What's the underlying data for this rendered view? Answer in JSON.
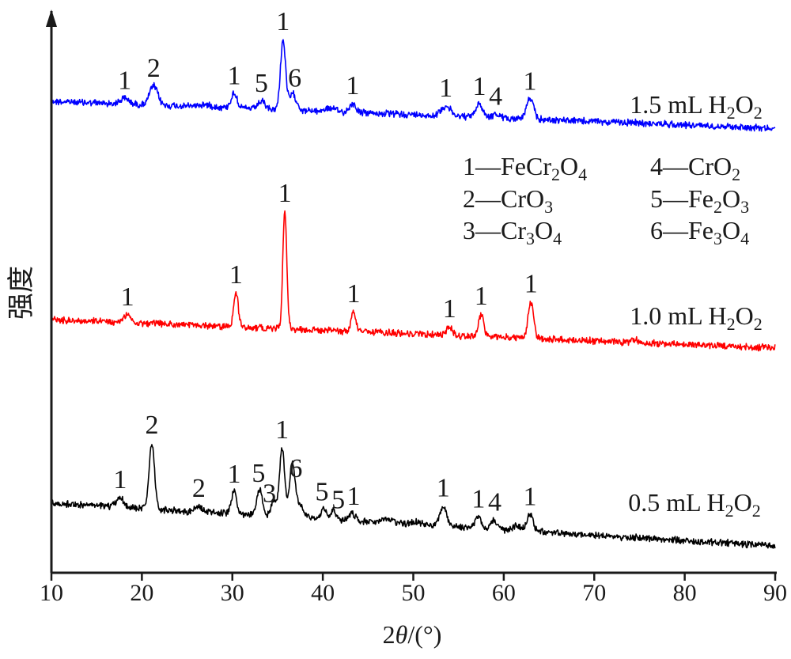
{
  "chart_data": {
    "type": "line",
    "xlabel": "2θ/(°)",
    "ylabel": "强度",
    "xlim": [
      10,
      90
    ],
    "xticks": [
      10,
      20,
      30,
      40,
      50,
      60,
      70,
      80,
      90
    ],
    "xtick_labels": [
      "10",
      "20",
      "30",
      "40",
      "50",
      "60",
      "70",
      "80",
      "90"
    ],
    "grid": false,
    "legend": {
      "placement": "right-middle",
      "entries": [
        {
          "id": "1",
          "text": "1—FeCr",
          "sub": [
            "2",
            "4"
          ],
          "parts": [
            "1—FeCr",
            "2",
            "O",
            "4"
          ]
        },
        {
          "id": "4",
          "parts": [
            "4—CrO",
            "2"
          ]
        },
        {
          "id": "2",
          "parts": [
            "2—CrO",
            "3"
          ]
        },
        {
          "id": "5",
          "parts": [
            "5—Fe",
            "2",
            "O",
            "3"
          ]
        },
        {
          "id": "3",
          "parts": [
            "3—Cr",
            "3",
            "O",
            "4"
          ]
        },
        {
          "id": "6",
          "parts": [
            "6—Fe",
            "3",
            "O",
            "4"
          ]
        }
      ]
    },
    "series": [
      {
        "name": "1.5 mL H2O2",
        "label_parts": [
          "1.5 mL H",
          "2",
          "O",
          "2"
        ],
        "color": "#0000ff",
        "peaks": [
          {
            "x": 18.1,
            "h": 0.25,
            "w": 0.5
          },
          {
            "x": 21.3,
            "h": 0.85,
            "w": 0.45
          },
          {
            "x": 26.9,
            "h": 0.1,
            "w": 0.9
          },
          {
            "x": 30.2,
            "h": 0.65,
            "w": 0.35
          },
          {
            "x": 33.2,
            "h": 0.35,
            "w": 0.35
          },
          {
            "x": 35.6,
            "h": 3.15,
            "w": 0.28
          },
          {
            "x": 36.7,
            "h": 0.72,
            "w": 0.4
          },
          {
            "x": 40.8,
            "h": 0.15,
            "w": 0.6
          },
          {
            "x": 43.3,
            "h": 0.4,
            "w": 0.35
          },
          {
            "x": 53.6,
            "h": 0.45,
            "w": 0.5
          },
          {
            "x": 57.3,
            "h": 0.58,
            "w": 0.4
          },
          {
            "x": 59.1,
            "h": 0.15,
            "w": 0.4
          },
          {
            "x": 62.9,
            "h": 0.9,
            "w": 0.4
          }
        ],
        "peak_labels": [
          {
            "text": "1",
            "x": 18.1
          },
          {
            "text": "2",
            "x": 21.3
          },
          {
            "text": "1",
            "x": 30.2
          },
          {
            "text": "5",
            "x": 33.2
          },
          {
            "text": "1",
            "x": 35.6
          },
          {
            "text": "6",
            "x": 36.9
          },
          {
            "text": "1",
            "x": 43.3
          },
          {
            "text": "1",
            "x": 53.6
          },
          {
            "text": "1",
            "x": 57.3
          },
          {
            "text": "4",
            "x": 59.1
          },
          {
            "text": "1",
            "x": 62.9
          }
        ]
      },
      {
        "name": "1.0 mL H2O2",
        "label_parts": [
          "1.0 mL H",
          "2",
          "O",
          "2"
        ],
        "color": "#ff0000",
        "peaks": [
          {
            "x": 18.4,
            "h": 0.35,
            "w": 0.4
          },
          {
            "x": 30.4,
            "h": 1.55,
            "w": 0.25
          },
          {
            "x": 35.8,
            "h": 5.3,
            "w": 0.22
          },
          {
            "x": 43.4,
            "h": 0.9,
            "w": 0.25
          },
          {
            "x": 54.0,
            "h": 0.38,
            "w": 0.3
          },
          {
            "x": 57.5,
            "h": 1.02,
            "w": 0.28
          },
          {
            "x": 63.0,
            "h": 1.65,
            "w": 0.3
          },
          {
            "x": 74.4,
            "h": 0.12,
            "w": 0.4
          }
        ],
        "peak_labels": [
          {
            "text": "1",
            "x": 18.4
          },
          {
            "text": "1",
            "x": 30.4
          },
          {
            "text": "1",
            "x": 35.8
          },
          {
            "text": "1",
            "x": 43.4
          },
          {
            "text": "1",
            "x": 54.0
          },
          {
            "text": "1",
            "x": 57.5
          },
          {
            "text": "1",
            "x": 63.0
          }
        ]
      },
      {
        "name": "0.5 mL H2O2",
        "label_parts": [
          "0.5 mL H",
          "2",
          "O",
          "2"
        ],
        "color": "#000000",
        "peaks": [
          {
            "x": 17.6,
            "h": 0.35,
            "w": 0.4
          },
          {
            "x": 21.1,
            "h": 2.45,
            "w": 0.3
          },
          {
            "x": 26.3,
            "h": 0.2,
            "w": 0.4
          },
          {
            "x": 30.2,
            "h": 0.82,
            "w": 0.3
          },
          {
            "x": 33.0,
            "h": 0.95,
            "w": 0.3
          },
          {
            "x": 34.6,
            "h": 0.65,
            "w": 0.3
          },
          {
            "x": 35.5,
            "h": 2.55,
            "w": 0.28
          },
          {
            "x": 36.6,
            "h": 1.8,
            "w": 0.3
          },
          {
            "x": 37.3,
            "h": 0.5,
            "w": 0.5
          },
          {
            "x": 40.1,
            "h": 0.42,
            "w": 0.3
          },
          {
            "x": 41.2,
            "h": 0.35,
            "w": 0.3
          },
          {
            "x": 43.2,
            "h": 0.3,
            "w": 0.35
          },
          {
            "x": 47.3,
            "h": 0.12,
            "w": 0.6
          },
          {
            "x": 50.5,
            "h": 0.1,
            "w": 0.6
          },
          {
            "x": 53.3,
            "h": 0.75,
            "w": 0.35
          },
          {
            "x": 57.2,
            "h": 0.42,
            "w": 0.35
          },
          {
            "x": 58.9,
            "h": 0.35,
            "w": 0.35
          },
          {
            "x": 61.5,
            "h": 0.18,
            "w": 0.5
          },
          {
            "x": 62.9,
            "h": 0.62,
            "w": 0.35
          }
        ],
        "peak_labels": [
          {
            "text": "1",
            "x": 17.6
          },
          {
            "text": "2",
            "x": 21.1
          },
          {
            "text": "2",
            "x": 26.3
          },
          {
            "text": "1",
            "x": 30.2
          },
          {
            "text": "5",
            "x": 32.9
          },
          {
            "text": "3",
            "x": 34.1
          },
          {
            "text": "1",
            "x": 35.5
          },
          {
            "text": "6",
            "x": 37.0
          },
          {
            "text": "5",
            "x": 39.9
          },
          {
            "text": "5",
            "x": 41.7
          },
          {
            "text": "1",
            "x": 43.4
          },
          {
            "text": "1",
            "x": 53.3
          },
          {
            "text": "1",
            "x": 57.2
          },
          {
            "text": "4",
            "x": 59.0
          },
          {
            "text": "1",
            "x": 62.9
          }
        ]
      }
    ]
  }
}
